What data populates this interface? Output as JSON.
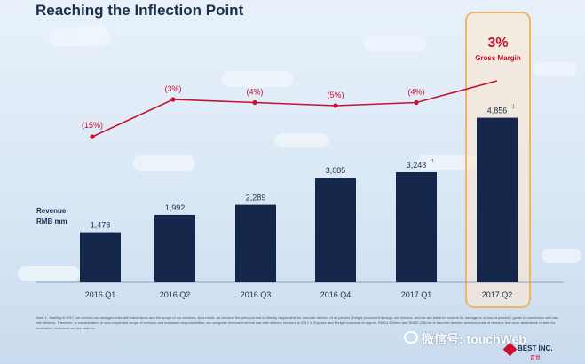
{
  "title": "Reaching the Inflection Point",
  "highlight": {
    "value": "3%",
    "label": "Gross Margin"
  },
  "revenue_label": [
    "Revenue",
    "RMB mm"
  ],
  "chart_data": {
    "type": "bar",
    "categories": [
      "2016 Q1",
      "2016 Q2",
      "2016 Q3",
      "2016 Q4",
      "2017 Q1",
      "2017 Q2"
    ],
    "values": [
      1478,
      1992,
      2289,
      3085,
      3248,
      4856
    ],
    "value_labels": [
      "1,478",
      "1,992",
      "2,289",
      "3,085",
      "3,248",
      "4,856"
    ],
    "footnote_marks": [
      "",
      "",
      "",
      "",
      "1",
      "1"
    ],
    "ylabel": "Revenue RMB mm",
    "ylim": [
      0,
      5500
    ],
    "line_series": {
      "values": [
        -15,
        -3,
        -4,
        -5,
        -4,
        3
      ],
      "labels": [
        "(15%)",
        "(3%)",
        "(4%)",
        "(5%)",
        "(4%)",
        "3%"
      ],
      "ylim": [
        -20,
        5
      ]
    },
    "colors": {
      "bar": "#14274a",
      "line": "#c8102e",
      "marker": "#c8102e"
    }
  },
  "note": "Note: 1. Starting in 2017, we revised our arrangements with franchisees and the scope of our services. As a result, we became the principal that is directly responsible for last-mile delivery of all parcels / freight processed through our network, and we are liable to senders for damage to or loss of parcels / goods in connection with last-mile delivery. Therefore, in consideration of such expanded scope of services and increased responsibilities, we recognize revenue from the last-mile delivery services in 2017 in Express and Freight business of approx. RMB1,305mm and RMB2,226mm of last-mile delivery services costs of revenue that were attributable to fees for destination hinterland service stations.",
  "watermark": "微信号: touchWeb",
  "logo": {
    "name": "BEST INC.",
    "sub": "百世"
  }
}
